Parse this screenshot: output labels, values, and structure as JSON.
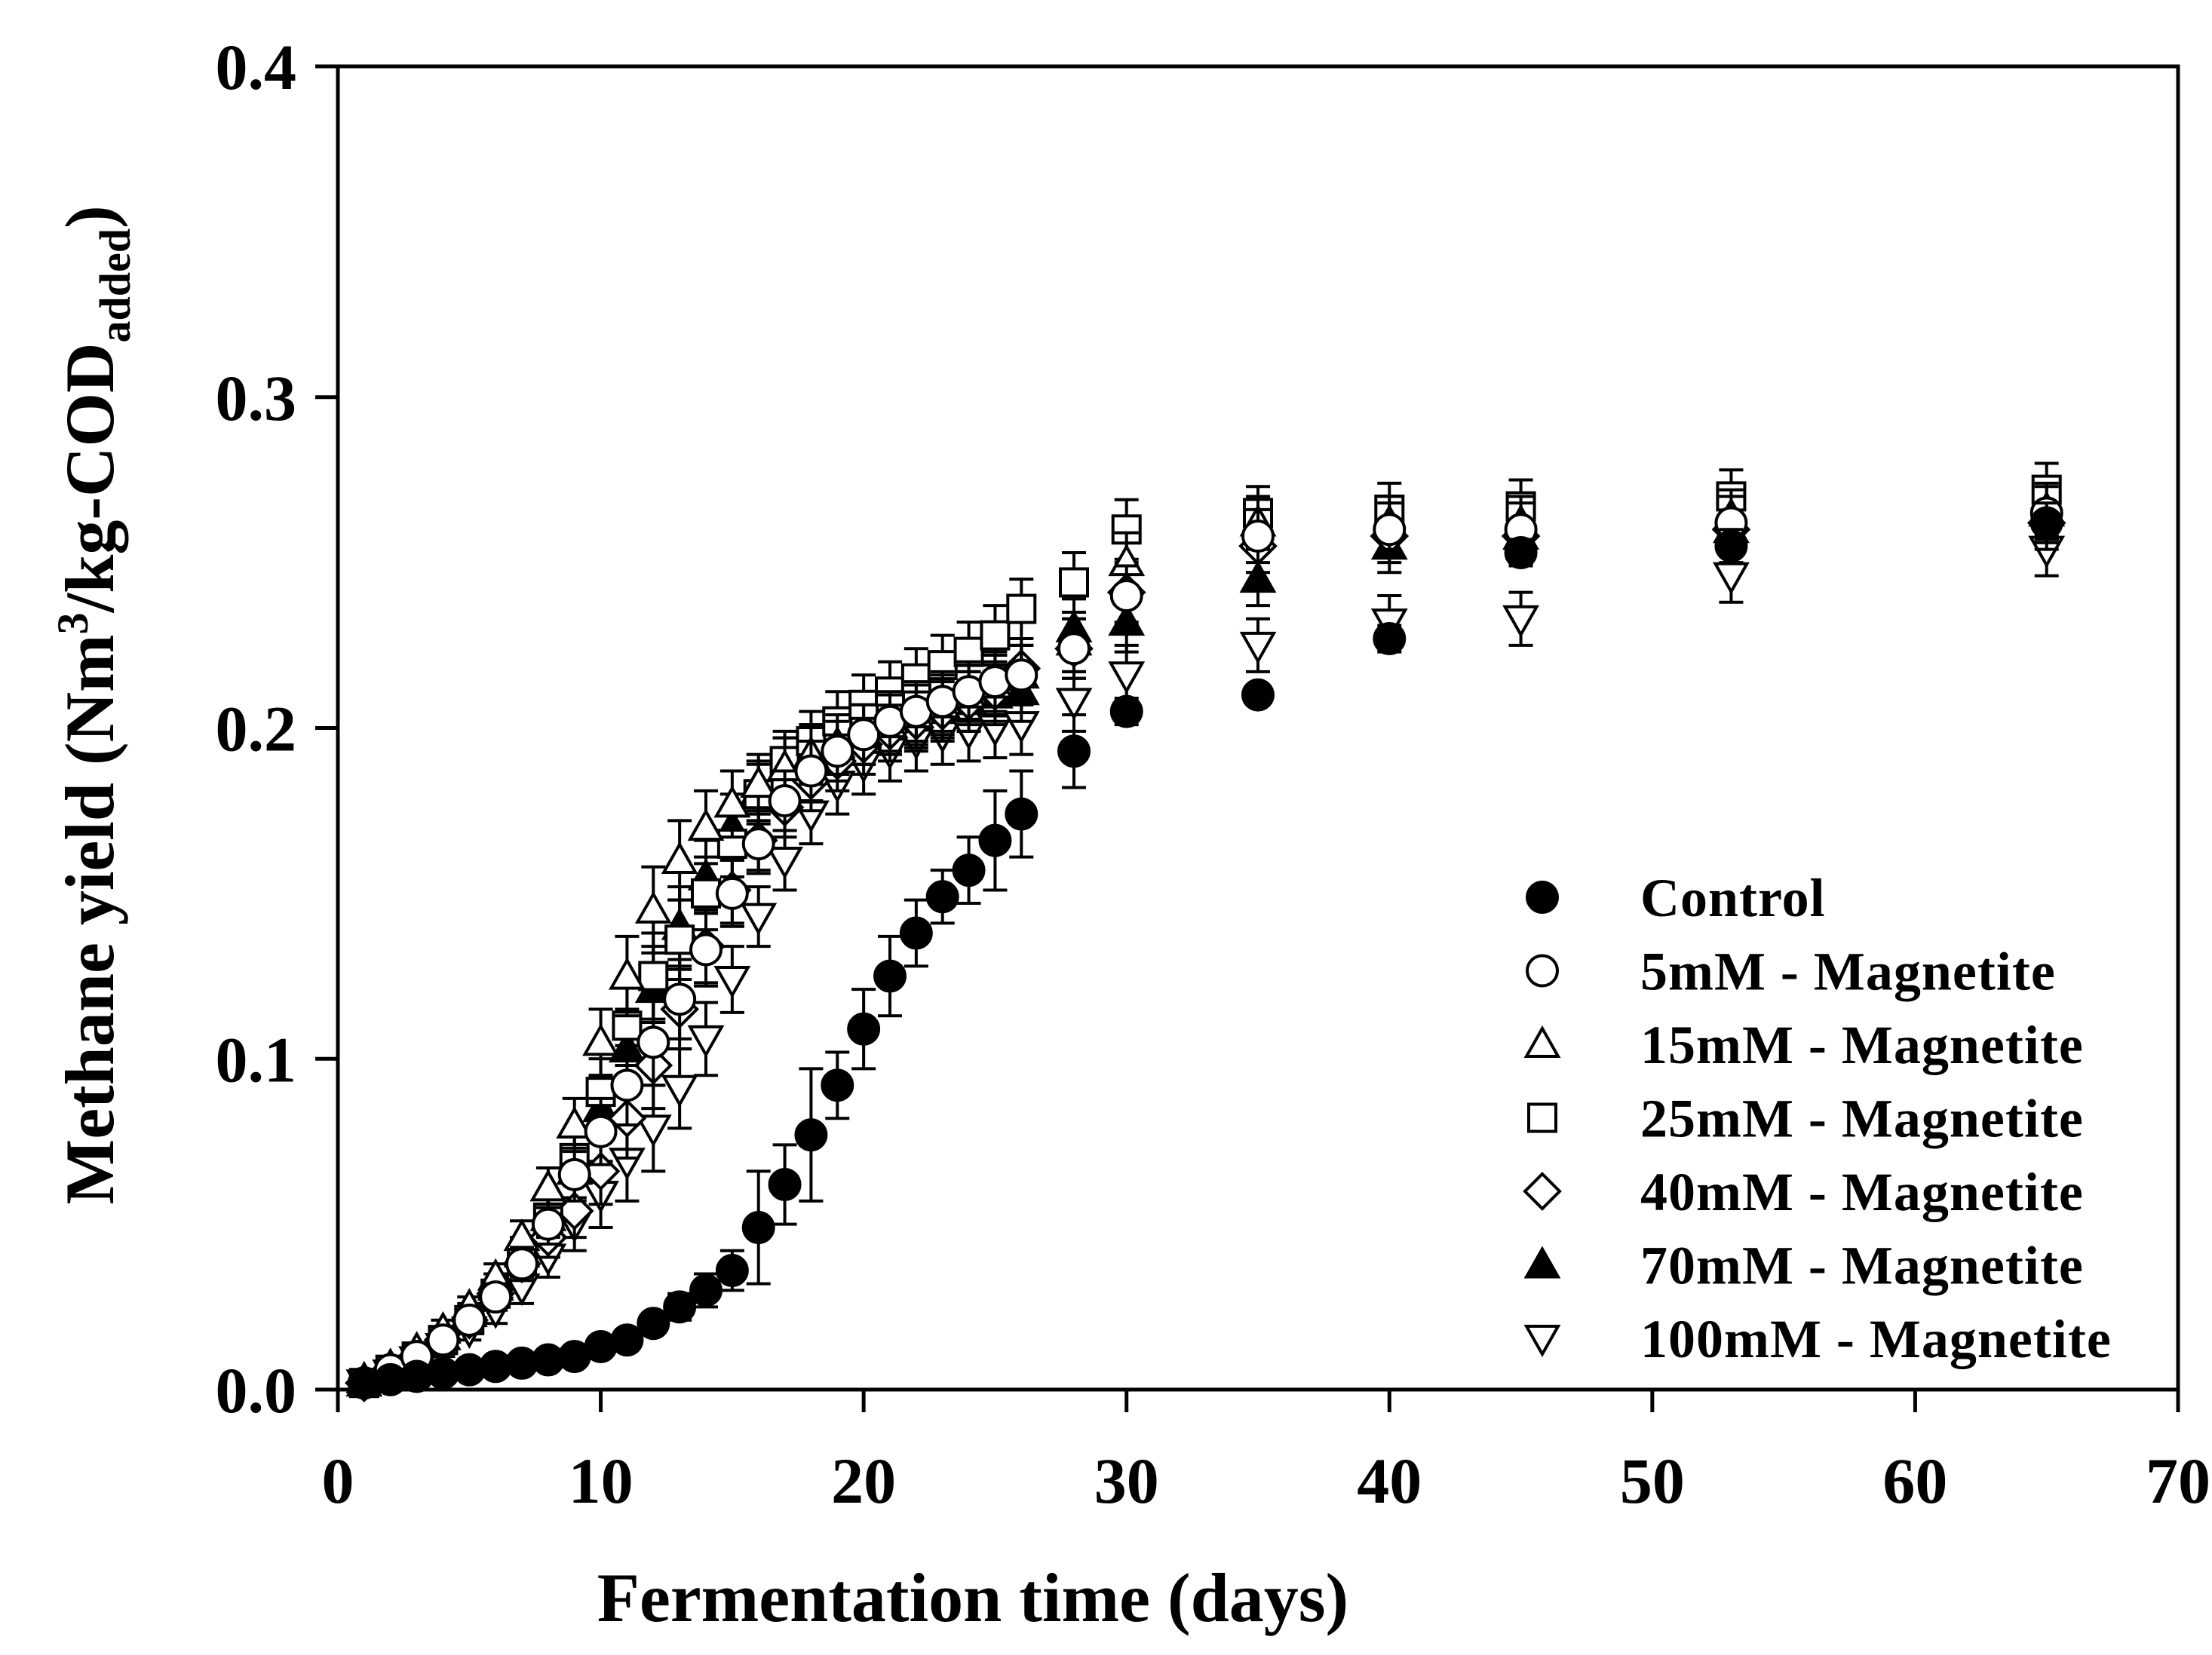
{
  "chart_data": {
    "type": "scatter",
    "title": "",
    "xlabel": "Fermentation time (days)",
    "ylabel_main": "Methane yield (Nm",
    "ylabel_sup": "3",
    "ylabel_mid": "/kg-COD",
    "ylabel_sub": "added",
    "ylabel_end": ")",
    "xlim": [
      0,
      70
    ],
    "ylim": [
      0.0,
      0.4
    ],
    "x_ticks": [
      0,
      10,
      20,
      30,
      40,
      50,
      60,
      70
    ],
    "x_tick_labels": [
      "0",
      "10",
      "20",
      "30",
      "40",
      "50",
      "60",
      "70"
    ],
    "y_ticks": [
      0.0,
      0.1,
      0.2,
      0.3,
      0.4
    ],
    "y_tick_labels": [
      "0.0",
      "0.1",
      "0.2",
      "0.3",
      "0.4"
    ],
    "grid": false,
    "legend_position": "bottom-right",
    "x": [
      1,
      2,
      3,
      4,
      5,
      6,
      7,
      8,
      9,
      10,
      11,
      12,
      13,
      14,
      15,
      16,
      17,
      18,
      19,
      20,
      21,
      22,
      23,
      24,
      25,
      26,
      28,
      30,
      35,
      40,
      45,
      53,
      65
    ],
    "series": [
      {
        "name": "Control",
        "marker": "circle",
        "filled": true,
        "values": [
          0.002,
          0.003,
          0.004,
          0.005,
          0.006,
          0.007,
          0.008,
          0.009,
          0.01,
          0.013,
          0.015,
          0.02,
          0.025,
          0.03,
          0.036,
          0.049,
          0.062,
          0.077,
          0.092,
          0.109,
          0.125,
          0.138,
          0.149,
          0.157,
          0.166,
          0.174,
          0.193,
          0.205,
          0.21,
          0.227,
          0.253,
          0.255,
          0.262
        ],
        "errors": [
          0.001,
          0.001,
          0.001,
          0.001,
          0.001,
          0.001,
          0.001,
          0.002,
          0.002,
          0.002,
          0.003,
          0.003,
          0.004,
          0.005,
          0.006,
          0.017,
          0.012,
          0.02,
          0.01,
          0.012,
          0.012,
          0.01,
          0.008,
          0.01,
          0.015,
          0.013,
          0.011,
          0.004,
          0.003,
          0.004,
          0.004,
          0.005,
          0.006
        ]
      },
      {
        "name": "5mM - Magnetite",
        "marker": "circle",
        "filled": false,
        "values": [
          0.002,
          0.006,
          0.01,
          0.015,
          0.021,
          0.028,
          0.038,
          0.05,
          0.065,
          0.078,
          0.092,
          0.105,
          0.118,
          0.133,
          0.15,
          0.165,
          0.178,
          0.187,
          0.193,
          0.198,
          0.202,
          0.205,
          0.208,
          0.211,
          0.214,
          0.216,
          0.224,
          0.24,
          0.258,
          0.26,
          0.26,
          0.262,
          0.265
        ],
        "errors": [
          0.001,
          0.002,
          0.002,
          0.003,
          0.003,
          0.004,
          0.005,
          0.006,
          0.008,
          0.01,
          0.012,
          0.013,
          0.012,
          0.011,
          0.01,
          0.009,
          0.009,
          0.009,
          0.009,
          0.009,
          0.009,
          0.009,
          0.009,
          0.009,
          0.009,
          0.009,
          0.009,
          0.009,
          0.008,
          0.008,
          0.008,
          0.008,
          0.008
        ]
      },
      {
        "name": "15mM - Magnetite",
        "marker": "triangle-up",
        "filled": false,
        "values": [
          0.003,
          0.007,
          0.012,
          0.018,
          0.025,
          0.034,
          0.046,
          0.061,
          0.08,
          0.105,
          0.125,
          0.145,
          0.16,
          0.17,
          0.177,
          0.183,
          0.188,
          0.192,
          0.195,
          0.198,
          0.201,
          0.204,
          0.207,
          0.21,
          0.213,
          0.216,
          0.226,
          0.25,
          0.262,
          0.262,
          0.262,
          0.264,
          0.266
        ],
        "errors": [
          0.001,
          0.002,
          0.002,
          0.003,
          0.003,
          0.004,
          0.005,
          0.006,
          0.008,
          0.01,
          0.012,
          0.013,
          0.012,
          0.011,
          0.01,
          0.009,
          0.009,
          0.009,
          0.009,
          0.009,
          0.009,
          0.009,
          0.009,
          0.009,
          0.009,
          0.009,
          0.009,
          0.009,
          0.008,
          0.008,
          0.008,
          0.008,
          0.008
        ]
      },
      {
        "name": "25mM - Magnetite",
        "marker": "square",
        "filled": false,
        "values": [
          0.002,
          0.006,
          0.01,
          0.015,
          0.021,
          0.029,
          0.039,
          0.052,
          0.07,
          0.09,
          0.11,
          0.125,
          0.136,
          0.15,
          0.165,
          0.18,
          0.19,
          0.196,
          0.202,
          0.207,
          0.211,
          0.215,
          0.219,
          0.223,
          0.228,
          0.236,
          0.244,
          0.26,
          0.265,
          0.266,
          0.267,
          0.27,
          0.272
        ],
        "errors": [
          0.001,
          0.002,
          0.002,
          0.003,
          0.003,
          0.004,
          0.005,
          0.006,
          0.008,
          0.01,
          0.012,
          0.013,
          0.012,
          0.011,
          0.01,
          0.009,
          0.009,
          0.009,
          0.009,
          0.009,
          0.009,
          0.009,
          0.009,
          0.009,
          0.009,
          0.009,
          0.009,
          0.009,
          0.008,
          0.008,
          0.008,
          0.008,
          0.008
        ]
      },
      {
        "name": "40mM - Magnetite",
        "marker": "diamond",
        "filled": false,
        "values": [
          0.002,
          0.006,
          0.01,
          0.015,
          0.021,
          0.029,
          0.038,
          0.046,
          0.054,
          0.066,
          0.082,
          0.098,
          0.115,
          0.134,
          0.151,
          0.166,
          0.176,
          0.184,
          0.19,
          0.195,
          0.199,
          0.202,
          0.205,
          0.208,
          0.211,
          0.218,
          0.224,
          0.241,
          0.255,
          0.258,
          0.258,
          0.26,
          0.262
        ],
        "errors": [
          0.001,
          0.002,
          0.002,
          0.003,
          0.003,
          0.004,
          0.005,
          0.006,
          0.008,
          0.01,
          0.012,
          0.013,
          0.012,
          0.011,
          0.01,
          0.009,
          0.009,
          0.009,
          0.009,
          0.009,
          0.009,
          0.009,
          0.009,
          0.009,
          0.009,
          0.009,
          0.009,
          0.009,
          0.008,
          0.008,
          0.008,
          0.008,
          0.008
        ]
      },
      {
        "name": "70mM - Magnetite",
        "marker": "triangle-up",
        "filled": true,
        "values": [
          0.002,
          0.006,
          0.011,
          0.016,
          0.023,
          0.031,
          0.041,
          0.052,
          0.066,
          0.085,
          0.103,
          0.121,
          0.14,
          0.155,
          0.17,
          0.181,
          0.188,
          0.192,
          0.195,
          0.198,
          0.201,
          0.203,
          0.206,
          0.208,
          0.21,
          0.211,
          0.23,
          0.232,
          0.245,
          0.255,
          0.258,
          0.26,
          0.265
        ],
        "errors": [
          0.001,
          0.002,
          0.002,
          0.003,
          0.003,
          0.004,
          0.005,
          0.006,
          0.008,
          0.01,
          0.012,
          0.013,
          0.012,
          0.011,
          0.01,
          0.009,
          0.009,
          0.009,
          0.009,
          0.009,
          0.009,
          0.009,
          0.009,
          0.009,
          0.009,
          0.009,
          0.009,
          0.009,
          0.008,
          0.008,
          0.008,
          0.008,
          0.008
        ]
      },
      {
        "name": "100mM - Magnetite",
        "marker": "triangle-down",
        "filled": false,
        "values": [
          0.002,
          0.005,
          0.009,
          0.013,
          0.018,
          0.024,
          0.031,
          0.04,
          0.05,
          0.059,
          0.069,
          0.079,
          0.091,
          0.106,
          0.124,
          0.143,
          0.16,
          0.174,
          0.183,
          0.189,
          0.193,
          0.196,
          0.198,
          0.199,
          0.2,
          0.201,
          0.208,
          0.216,
          0.225,
          0.232,
          0.233,
          0.246,
          0.254
        ],
        "errors": [
          0.001,
          0.002,
          0.002,
          0.003,
          0.003,
          0.004,
          0.005,
          0.006,
          0.008,
          0.01,
          0.012,
          0.013,
          0.012,
          0.011,
          0.01,
          0.009,
          0.009,
          0.009,
          0.009,
          0.009,
          0.009,
          0.009,
          0.009,
          0.009,
          0.009,
          0.009,
          0.009,
          0.009,
          0.008,
          0.008,
          0.008,
          0.008,
          0.008
        ]
      }
    ]
  }
}
